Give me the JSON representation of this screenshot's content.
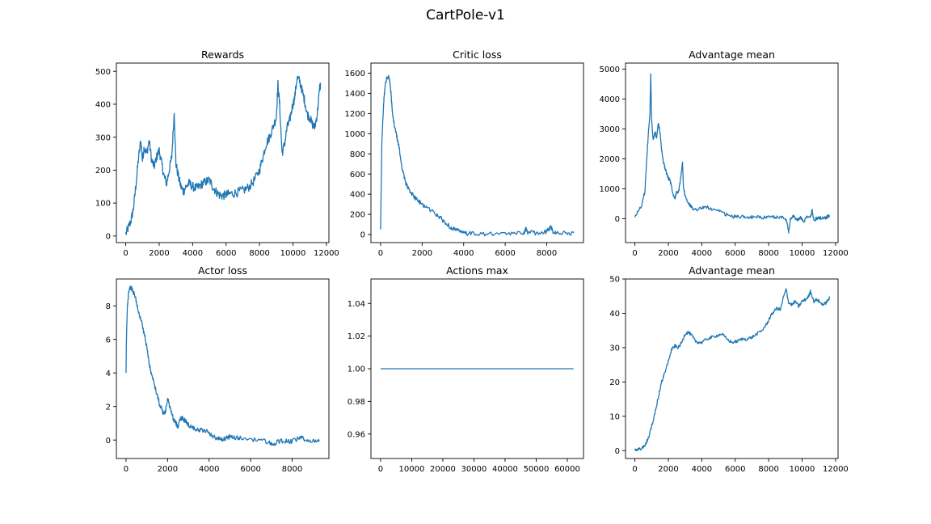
{
  "figure": {
    "title": "CartPole-v1"
  },
  "chart_data": [
    {
      "type": "line",
      "title": "Rewards",
      "xlim": [
        -560,
        12150
      ],
      "ylim": [
        -20,
        525
      ],
      "xticks": [
        0,
        2000,
        4000,
        6000,
        8000,
        10000,
        12000
      ],
      "yticks": [
        0,
        100,
        200,
        300,
        400,
        500
      ],
      "noise": 14,
      "points": [
        [
          0,
          5
        ],
        [
          150,
          25
        ],
        [
          300,
          45
        ],
        [
          450,
          80
        ],
        [
          600,
          150
        ],
        [
          750,
          230
        ],
        [
          900,
          290
        ],
        [
          1000,
          230
        ],
        [
          1100,
          270
        ],
        [
          1250,
          250
        ],
        [
          1400,
          290
        ],
        [
          1550,
          230
        ],
        [
          1700,
          210
        ],
        [
          1850,
          240
        ],
        [
          2000,
          260
        ],
        [
          2150,
          220
        ],
        [
          2300,
          180
        ],
        [
          2450,
          160
        ],
        [
          2600,
          200
        ],
        [
          2750,
          240
        ],
        [
          2900,
          375
        ],
        [
          3000,
          220
        ],
        [
          3150,
          180
        ],
        [
          3300,
          150
        ],
        [
          3450,
          135
        ],
        [
          3600,
          150
        ],
        [
          3800,
          160
        ],
        [
          4000,
          150
        ],
        [
          4200,
          145
        ],
        [
          4400,
          150
        ],
        [
          4600,
          160
        ],
        [
          4800,
          165
        ],
        [
          5000,
          170
        ],
        [
          5200,
          150
        ],
        [
          5400,
          135
        ],
        [
          5600,
          125
        ],
        [
          5800,
          122
        ],
        [
          6000,
          125
        ],
        [
          6200,
          128
        ],
        [
          6500,
          130
        ],
        [
          6800,
          135
        ],
        [
          7100,
          140
        ],
        [
          7400,
          150
        ],
        [
          7700,
          170
        ],
        [
          8000,
          200
        ],
        [
          8200,
          240
        ],
        [
          8400,
          280
        ],
        [
          8600,
          300
        ],
        [
          8800,
          330
        ],
        [
          9000,
          360
        ],
        [
          9100,
          460
        ],
        [
          9200,
          400
        ],
        [
          9350,
          250
        ],
        [
          9500,
          280
        ],
        [
          9650,
          330
        ],
        [
          9800,
          350
        ],
        [
          9950,
          390
        ],
        [
          10100,
          420
        ],
        [
          10250,
          480
        ],
        [
          10400,
          470
        ],
        [
          10550,
          440
        ],
        [
          10700,
          410
        ],
        [
          10850,
          370
        ],
        [
          11000,
          360
        ],
        [
          11150,
          340
        ],
        [
          11300,
          330
        ],
        [
          11450,
          370
        ],
        [
          11600,
          450
        ],
        [
          11650,
          460
        ]
      ]
    },
    {
      "type": "line",
      "title": "Critic loss",
      "xlim": [
        -465,
        9770
      ],
      "ylim": [
        -80,
        1700
      ],
      "xticks": [
        0,
        2000,
        4000,
        6000,
        8000
      ],
      "yticks": [
        0,
        200,
        400,
        600,
        800,
        1000,
        1200,
        1400,
        1600
      ],
      "noise": 22,
      "points": [
        [
          0,
          50
        ],
        [
          30,
          500
        ],
        [
          60,
          900
        ],
        [
          100,
          1100
        ],
        [
          150,
          1300
        ],
        [
          200,
          1450
        ],
        [
          300,
          1550
        ],
        [
          400,
          1560
        ],
        [
          450,
          1500
        ],
        [
          500,
          1400
        ],
        [
          550,
          1250
        ],
        [
          600,
          1150
        ],
        [
          700,
          1050
        ],
        [
          800,
          950
        ],
        [
          900,
          850
        ],
        [
          1000,
          700
        ],
        [
          1100,
          600
        ],
        [
          1200,
          520
        ],
        [
          1300,
          470
        ],
        [
          1400,
          430
        ],
        [
          1600,
          380
        ],
        [
          1800,
          330
        ],
        [
          2000,
          300
        ],
        [
          2200,
          270
        ],
        [
          2500,
          230
        ],
        [
          2800,
          180
        ],
        [
          3000,
          140
        ],
        [
          3200,
          100
        ],
        [
          3400,
          70
        ],
        [
          3600,
          50
        ],
        [
          3800,
          30
        ],
        [
          4000,
          15
        ],
        [
          4300,
          8
        ],
        [
          4700,
          5
        ],
        [
          5200,
          3
        ],
        [
          6000,
          5
        ],
        [
          6500,
          10
        ],
        [
          6900,
          20
        ],
        [
          7000,
          55
        ],
        [
          7100,
          20
        ],
        [
          7500,
          15
        ],
        [
          7900,
          25
        ],
        [
          8100,
          45
        ],
        [
          8200,
          80
        ],
        [
          8300,
          30
        ],
        [
          8600,
          20
        ],
        [
          9000,
          12
        ],
        [
          9300,
          15
        ]
      ]
    },
    {
      "type": "line",
      "title": "Advantage mean",
      "xlim": [
        -560,
        12150
      ],
      "ylim": [
        -800,
        5200
      ],
      "xticks": [
        0,
        2000,
        4000,
        6000,
        8000,
        10000,
        12000
      ],
      "yticks": [
        0,
        1000,
        2000,
        3000,
        4000,
        5000
      ],
      "noise": 55,
      "points": [
        [
          0,
          50
        ],
        [
          200,
          250
        ],
        [
          400,
          450
        ],
        [
          600,
          900
        ],
        [
          700,
          1900
        ],
        [
          800,
          2800
        ],
        [
          900,
          3500
        ],
        [
          950,
          4850
        ],
        [
          1000,
          3300
        ],
        [
          1100,
          2600
        ],
        [
          1200,
          2900
        ],
        [
          1300,
          2700
        ],
        [
          1400,
          3200
        ],
        [
          1500,
          2900
        ],
        [
          1600,
          2300
        ],
        [
          1700,
          1900
        ],
        [
          1800,
          1700
        ],
        [
          1900,
          1500
        ],
        [
          2000,
          1350
        ],
        [
          2100,
          1300
        ],
        [
          2200,
          1050
        ],
        [
          2300,
          800
        ],
        [
          2400,
          700
        ],
        [
          2500,
          900
        ],
        [
          2600,
          850
        ],
        [
          2700,
          1200
        ],
        [
          2800,
          1650
        ],
        [
          2850,
          1850
        ],
        [
          2900,
          1100
        ],
        [
          3000,
          750
        ],
        [
          3200,
          500
        ],
        [
          3400,
          380
        ],
        [
          3600,
          300
        ],
        [
          3800,
          330
        ],
        [
          4000,
          350
        ],
        [
          4300,
          400
        ],
        [
          4600,
          300
        ],
        [
          5000,
          250
        ],
        [
          5400,
          150
        ],
        [
          5800,
          70
        ],
        [
          6200,
          60
        ],
        [
          6600,
          70
        ],
        [
          7000,
          40
        ],
        [
          7400,
          60
        ],
        [
          7800,
          30
        ],
        [
          8200,
          50
        ],
        [
          8600,
          50
        ],
        [
          8900,
          40
        ],
        [
          9100,
          -100
        ],
        [
          9200,
          -450
        ],
        [
          9300,
          0
        ],
        [
          9500,
          80
        ],
        [
          9700,
          -50
        ],
        [
          9900,
          30
        ],
        [
          10100,
          -100
        ],
        [
          10300,
          60
        ],
        [
          10500,
          50
        ],
        [
          10600,
          280
        ],
        [
          10700,
          -50
        ],
        [
          10900,
          20
        ],
        [
          11100,
          30
        ],
        [
          11300,
          20
        ],
        [
          11500,
          60
        ],
        [
          11650,
          80
        ]
      ]
    },
    {
      "type": "line",
      "title": "Actor loss",
      "xlim": [
        -465,
        9770
      ],
      "ylim": [
        -1.1,
        9.6
      ],
      "xticks": [
        0,
        2000,
        4000,
        6000,
        8000
      ],
      "yticks": [
        0,
        2,
        4,
        6,
        8
      ],
      "noise": 0.14,
      "points": [
        [
          0,
          4
        ],
        [
          20,
          6
        ],
        [
          60,
          7.8
        ],
        [
          120,
          8.7
        ],
        [
          200,
          9.1
        ],
        [
          300,
          9.0
        ],
        [
          450,
          8.5
        ],
        [
          600,
          7.7
        ],
        [
          750,
          7.0
        ],
        [
          900,
          6.2
        ],
        [
          1000,
          5.5
        ],
        [
          1100,
          4.7
        ],
        [
          1200,
          4.0
        ],
        [
          1300,
          3.6
        ],
        [
          1400,
          3.1
        ],
        [
          1500,
          2.7
        ],
        [
          1600,
          2.2
        ],
        [
          1700,
          1.9
        ],
        [
          1800,
          1.6
        ],
        [
          1900,
          1.7
        ],
        [
          2000,
          2.5
        ],
        [
          2100,
          2.0
        ],
        [
          2200,
          1.6
        ],
        [
          2300,
          1.2
        ],
        [
          2400,
          1.0
        ],
        [
          2500,
          0.8
        ],
        [
          2600,
          1.3
        ],
        [
          2700,
          1.3
        ],
        [
          2800,
          1.2
        ],
        [
          2900,
          1.1
        ],
        [
          3000,
          0.9
        ],
        [
          3200,
          0.8
        ],
        [
          3400,
          0.6
        ],
        [
          3600,
          0.6
        ],
        [
          3800,
          0.55
        ],
        [
          4000,
          0.45
        ],
        [
          4200,
          0.2
        ],
        [
          4400,
          0.1
        ],
        [
          4600,
          0.05
        ],
        [
          4800,
          0.1
        ],
        [
          5000,
          0.2
        ],
        [
          5200,
          0.15
        ],
        [
          5500,
          0.1
        ],
        [
          6000,
          0.05
        ],
        [
          6500,
          0.0
        ],
        [
          6900,
          -0.15
        ],
        [
          7100,
          -0.3
        ],
        [
          7300,
          -0.1
        ],
        [
          7600,
          -0.05
        ],
        [
          7900,
          -0.1
        ],
        [
          8200,
          0.0
        ],
        [
          8400,
          0.2
        ],
        [
          8600,
          0.0
        ],
        [
          8900,
          -0.05
        ],
        [
          9200,
          0.0
        ],
        [
          9300,
          0.02
        ]
      ]
    },
    {
      "type": "line",
      "title": "Actions max",
      "xlim": [
        -3100,
        65200
      ],
      "ylim": [
        0.945,
        1.055
      ],
      "xticks": [
        0,
        10000,
        20000,
        30000,
        40000,
        50000,
        60000
      ],
      "yticks": [
        0.96,
        0.98,
        1.0,
        1.02,
        1.04
      ],
      "ytick_labels": [
        "0.96",
        "0.98",
        "1.00",
        "1.02",
        "1.04"
      ],
      "noise": 0,
      "points": [
        [
          0,
          1.0
        ],
        [
          62000,
          1.0
        ]
      ]
    },
    {
      "type": "line",
      "title": "Advantage mean",
      "xlim": [
        -560,
        12150
      ],
      "ylim": [
        -2.3,
        50
      ],
      "xticks": [
        0,
        2000,
        4000,
        6000,
        8000,
        10000,
        12000
      ],
      "yticks": [
        0,
        10,
        20,
        30,
        40,
        50
      ],
      "noise": 0.45,
      "points": [
        [
          0,
          0.1
        ],
        [
          200,
          0.3
        ],
        [
          400,
          0.6
        ],
        [
          600,
          1.5
        ],
        [
          800,
          3.5
        ],
        [
          1000,
          7
        ],
        [
          1200,
          11
        ],
        [
          1400,
          15.5
        ],
        [
          1600,
          20
        ],
        [
          1800,
          23
        ],
        [
          2000,
          26
        ],
        [
          2200,
          29.5
        ],
        [
          2400,
          30.5
        ],
        [
          2600,
          30
        ],
        [
          2800,
          31.5
        ],
        [
          3000,
          34
        ],
        [
          3200,
          34.5
        ],
        [
          3400,
          33.5
        ],
        [
          3600,
          32
        ],
        [
          3800,
          31.5
        ],
        [
          4000,
          31.5
        ],
        [
          4300,
          32.5
        ],
        [
          4600,
          33
        ],
        [
          4900,
          33.5
        ],
        [
          5200,
          34
        ],
        [
          5500,
          32.5
        ],
        [
          5800,
          31.5
        ],
        [
          6100,
          31.8
        ],
        [
          6400,
          32.5
        ],
        [
          6700,
          32.5
        ],
        [
          7000,
          33
        ],
        [
          7300,
          34
        ],
        [
          7600,
          35
        ],
        [
          7900,
          37
        ],
        [
          8100,
          39
        ],
        [
          8300,
          40.5
        ],
        [
          8500,
          41.5
        ],
        [
          8700,
          41
        ],
        [
          8900,
          45
        ],
        [
          9050,
          47
        ],
        [
          9200,
          43
        ],
        [
          9400,
          42.5
        ],
        [
          9600,
          43.5
        ],
        [
          9800,
          42
        ],
        [
          10000,
          43.5
        ],
        [
          10200,
          44
        ],
        [
          10400,
          45
        ],
        [
          10500,
          46.5
        ],
        [
          10700,
          43.5
        ],
        [
          10900,
          44
        ],
        [
          11100,
          43
        ],
        [
          11300,
          42.5
        ],
        [
          11500,
          43.5
        ],
        [
          11650,
          44.5
        ]
      ]
    }
  ]
}
